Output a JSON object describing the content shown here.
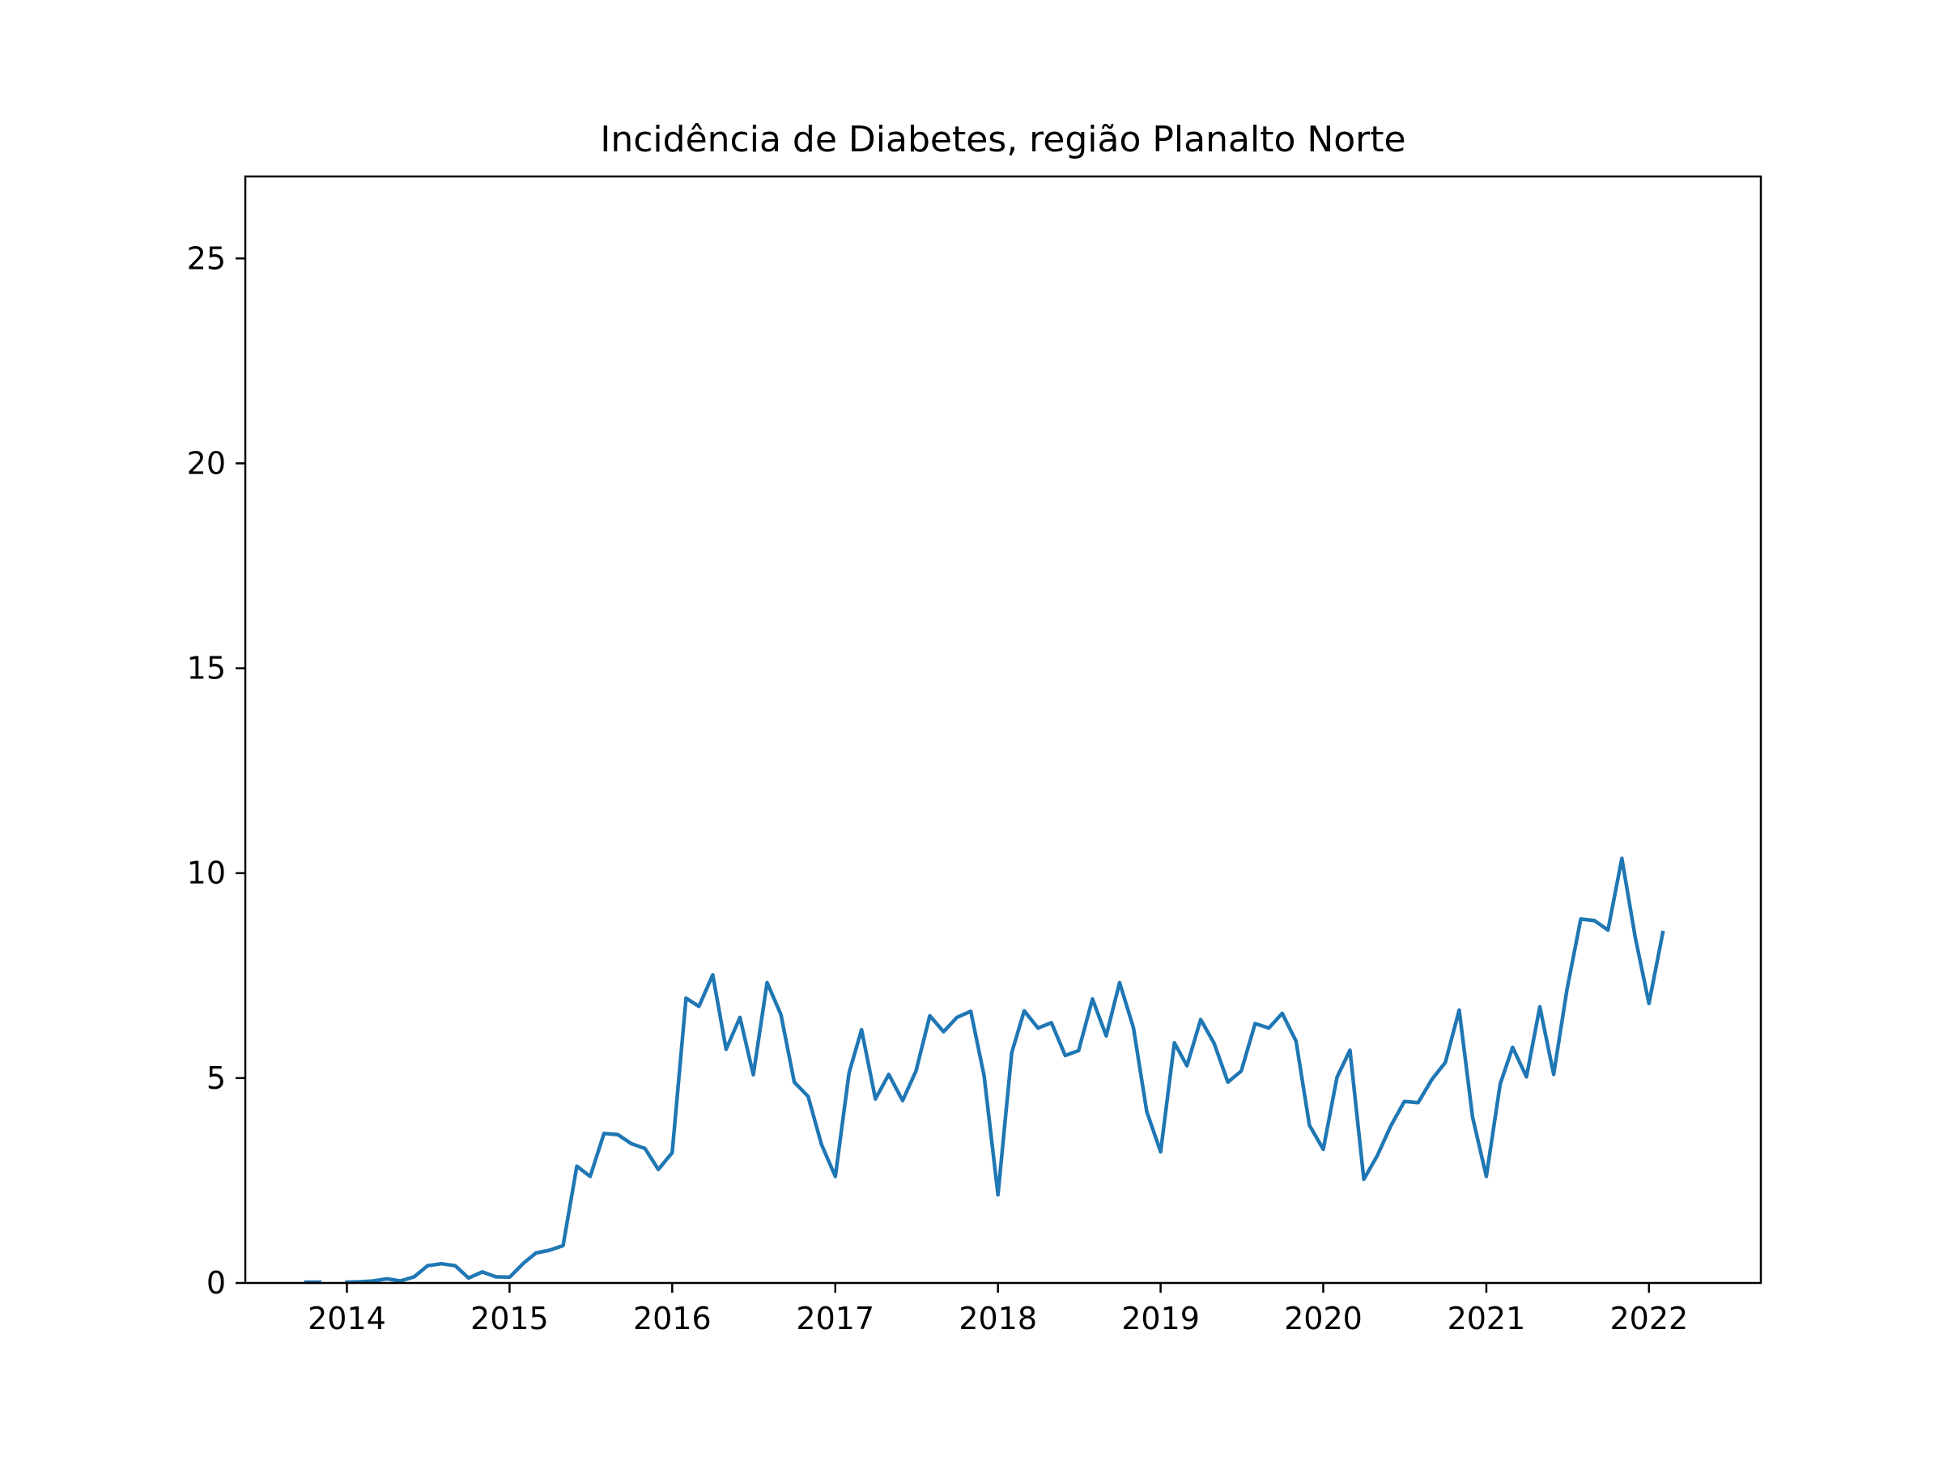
{
  "chart_data": {
    "type": "line",
    "title": "Incidência de Diabetes, região Planalto Norte",
    "xlabel": "",
    "ylabel": "",
    "x_range": [
      "2013-05-18",
      "2022-09-09"
    ],
    "ylim": [
      0,
      27
    ],
    "x_ticks": [
      {
        "label": "2014",
        "date": "2014-01-01"
      },
      {
        "label": "2015",
        "date": "2015-01-01"
      },
      {
        "label": "2016",
        "date": "2016-01-01"
      },
      {
        "label": "2017",
        "date": "2017-01-01"
      },
      {
        "label": "2018",
        "date": "2018-01-01"
      },
      {
        "label": "2019",
        "date": "2019-01-01"
      },
      {
        "label": "2020",
        "date": "2020-01-01"
      },
      {
        "label": "2021",
        "date": "2021-01-01"
      },
      {
        "label": "2022",
        "date": "2022-01-01"
      }
    ],
    "y_ticks": [
      {
        "label": "0",
        "value": 0
      },
      {
        "label": "5",
        "value": 5
      },
      {
        "label": "10",
        "value": 10
      },
      {
        "label": "15",
        "value": 15
      },
      {
        "label": "20",
        "value": 20
      },
      {
        "label": "25",
        "value": 25
      }
    ],
    "grid": false,
    "legend": "none",
    "series": [
      {
        "color": "#1f77b4",
        "segments": [
          {
            "x": [
              "2013-10-01",
              "2013-11-01"
            ],
            "y": [
              0.02,
              0.02
            ]
          },
          {
            "x": [
              "2014-01-01",
              "2014-02-01",
              "2014-03-01",
              "2014-04-01",
              "2014-05-01",
              "2014-06-01",
              "2014-07-01",
              "2014-08-01",
              "2014-09-01",
              "2014-10-01",
              "2014-11-01",
              "2014-12-01",
              "2015-01-01",
              "2015-02-01",
              "2015-03-01",
              "2015-04-01",
              "2015-05-01",
              "2015-06-01",
              "2015-07-01",
              "2015-08-01",
              "2015-09-01",
              "2015-10-01",
              "2015-11-01",
              "2015-12-01",
              "2016-01-01",
              "2016-02-01",
              "2016-03-01",
              "2016-04-01",
              "2016-05-01",
              "2016-06-01",
              "2016-07-01",
              "2016-08-01",
              "2016-09-01",
              "2016-10-01",
              "2016-11-01",
              "2016-12-01",
              "2017-01-01",
              "2017-02-01",
              "2017-03-01",
              "2017-04-01",
              "2017-05-01",
              "2017-06-01",
              "2017-07-01",
              "2017-08-01",
              "2017-09-01",
              "2017-10-01",
              "2017-11-01",
              "2017-12-01",
              "2018-01-01",
              "2018-02-01",
              "2018-03-01",
              "2018-04-01",
              "2018-05-01",
              "2018-06-01",
              "2018-07-01",
              "2018-08-01",
              "2018-09-01",
              "2018-10-01",
              "2018-11-01",
              "2018-12-01",
              "2019-01-01",
              "2019-02-01",
              "2019-03-01",
              "2019-04-01",
              "2019-05-01",
              "2019-06-01",
              "2019-07-01",
              "2019-08-01",
              "2019-09-01",
              "2019-10-01",
              "2019-11-01",
              "2019-12-01",
              "2020-01-01",
              "2020-02-01",
              "2020-03-01",
              "2020-04-01",
              "2020-05-01",
              "2020-06-01",
              "2020-07-01",
              "2020-08-01",
              "2020-09-01",
              "2020-10-01",
              "2020-11-01",
              "2020-12-01",
              "2021-01-01",
              "2021-02-01",
              "2021-03-01",
              "2021-04-01",
              "2021-05-01",
              "2021-06-01",
              "2021-07-01",
              "2021-08-01",
              "2021-09-01",
              "2021-10-01",
              "2021-11-01",
              "2021-12-01",
              "2022-01-01",
              "2022-02-01"
            ],
            "y": [
              0.02,
              0.03,
              0.05,
              0.1,
              0.05,
              0.15,
              0.42,
              0.47,
              0.42,
              0.12,
              0.27,
              0.15,
              0.14,
              0.48,
              0.73,
              0.8,
              0.91,
              2.85,
              2.6,
              3.65,
              3.62,
              3.4,
              3.28,
              2.77,
              3.18,
              6.95,
              6.75,
              7.52,
              5.7,
              6.48,
              5.08,
              7.33,
              6.55,
              4.9,
              4.55,
              3.38,
              2.6,
              5.13,
              6.18,
              4.49,
              5.09,
              4.45,
              5.17,
              6.52,
              6.13,
              6.48,
              6.63,
              5.05,
              2.15,
              5.62,
              6.64,
              6.22,
              6.35,
              5.55,
              5.67,
              6.93,
              6.03,
              7.33,
              6.23,
              4.18,
              3.2,
              5.86,
              5.3,
              6.43,
              5.85,
              4.9,
              5.17,
              6.33,
              6.22,
              6.58,
              5.9,
              3.85,
              3.26,
              5.02,
              5.68,
              2.53,
              3.1,
              3.84,
              4.43,
              4.4,
              4.97,
              5.38,
              6.66,
              4.05,
              2.6,
              4.85,
              5.75,
              5.03,
              6.74,
              5.09,
              7.17,
              8.88,
              8.84,
              8.61,
              10.36,
              8.44,
              6.82,
              8.55
            ]
          }
        ]
      }
    ]
  }
}
